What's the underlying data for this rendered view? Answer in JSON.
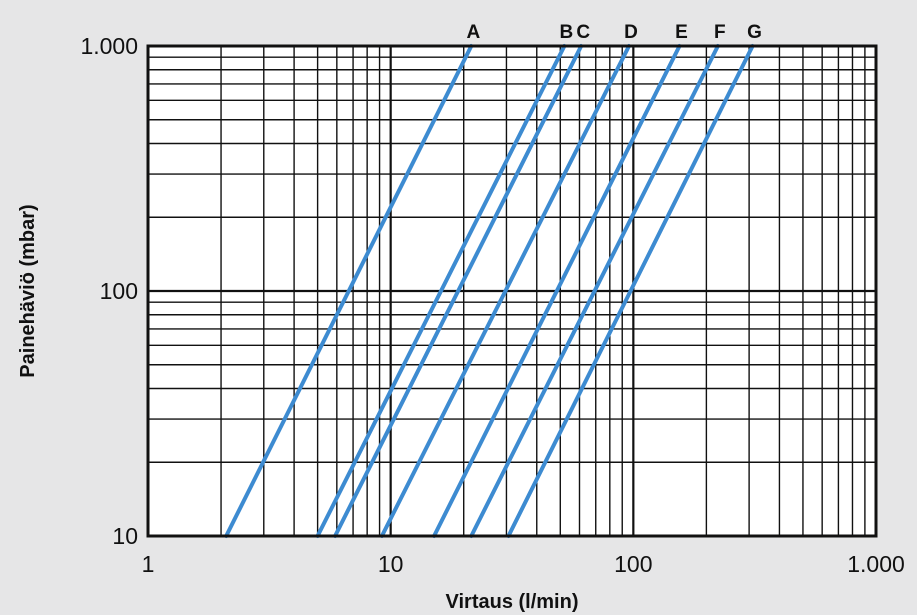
{
  "chart_data": {
    "type": "line",
    "title": "",
    "xlabel": "Virtaus (l/min)",
    "ylabel": "Painehäviö (mbar)",
    "x_scale": "log",
    "y_scale": "log",
    "xlim": [
      1,
      1000
    ],
    "ylim": [
      10,
      1000
    ],
    "grid": true,
    "x_ticks": [
      {
        "value": 1,
        "label": "1"
      },
      {
        "value": 10,
        "label": "10"
      },
      {
        "value": 100,
        "label": "100"
      },
      {
        "value": 1000,
        "label": "1.000"
      }
    ],
    "y_ticks": [
      {
        "value": 10,
        "label": "10"
      },
      {
        "value": 100,
        "label": "100"
      },
      {
        "value": 1000,
        "label": "1.000"
      }
    ],
    "line_color": "#3d8bd1",
    "series": [
      {
        "name": "A",
        "points": [
          {
            "x": 2.1,
            "y": 10
          },
          {
            "x": 21.5,
            "y": 1000
          }
        ]
      },
      {
        "name": "B",
        "points": [
          {
            "x": 5.0,
            "y": 10
          },
          {
            "x": 52,
            "y": 1000
          }
        ]
      },
      {
        "name": "C",
        "points": [
          {
            "x": 5.9,
            "y": 10
          },
          {
            "x": 61,
            "y": 1000
          }
        ]
      },
      {
        "name": "D",
        "points": [
          {
            "x": 9.2,
            "y": 10
          },
          {
            "x": 96,
            "y": 1000
          }
        ]
      },
      {
        "name": "E",
        "points": [
          {
            "x": 15.1,
            "y": 10
          },
          {
            "x": 155,
            "y": 1000
          }
        ]
      },
      {
        "name": "F",
        "points": [
          {
            "x": 21.5,
            "y": 10
          },
          {
            "x": 223,
            "y": 1000
          }
        ]
      },
      {
        "name": "G",
        "points": [
          {
            "x": 30.6,
            "y": 10
          },
          {
            "x": 310,
            "y": 1000
          }
        ]
      }
    ]
  }
}
